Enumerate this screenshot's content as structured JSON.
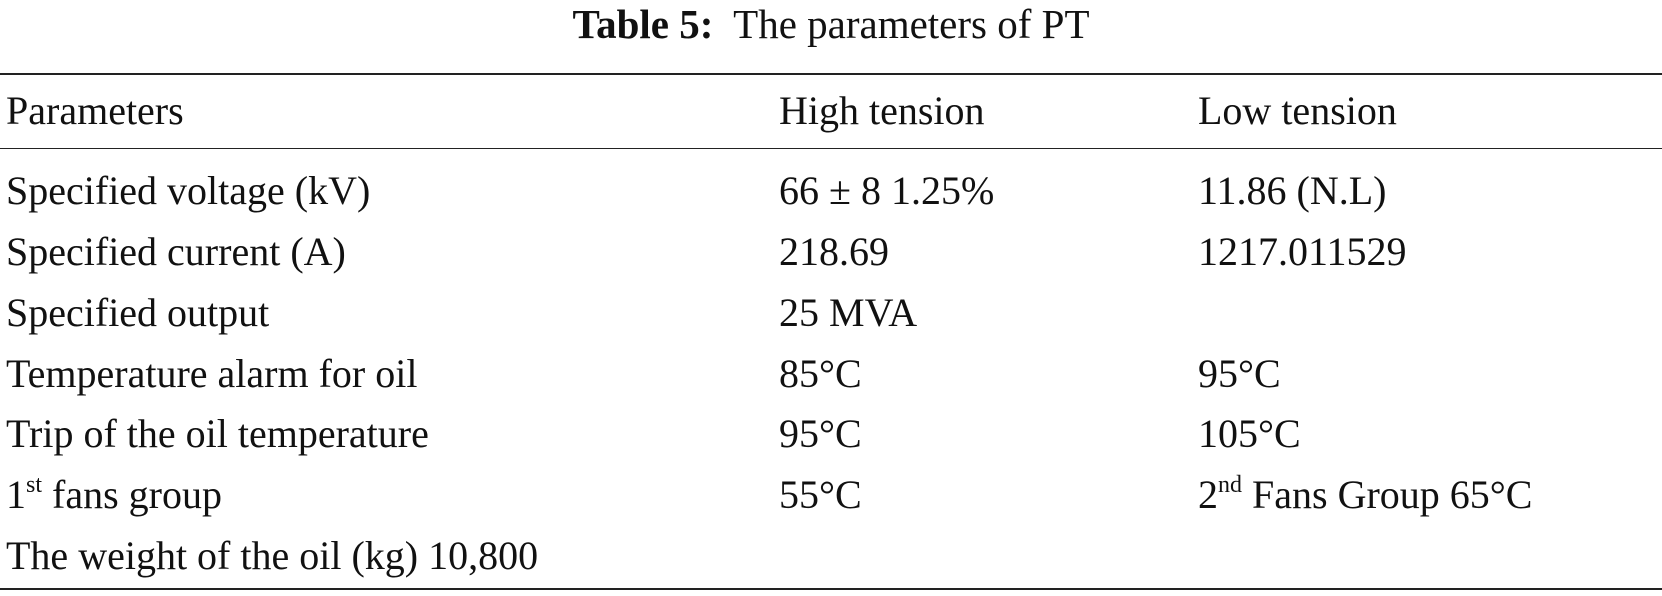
{
  "caption": {
    "label": "Table 5:",
    "title": "The parameters of PT"
  },
  "table": {
    "header": [
      "Parameters",
      "High tension",
      "Low tension"
    ],
    "rows": [
      [
        "Specified voltage (kV)",
        "66 ± 8 1.25%",
        "11.86 (N.L)"
      ],
      [
        "Specified current (A)",
        "218.69",
        "1217.011529"
      ],
      [
        "Specified output",
        "25 MVA"
      ],
      [
        "Temperature alarm for oil",
        "85°C",
        "95°C"
      ],
      [
        "Trip of the oil temperature",
        "95°C",
        "105°C"
      ],
      [
        {
          "base": "1",
          "sup": "st",
          "rest": " fans group"
        },
        "55°C",
        {
          "base": "2",
          "sup": "nd",
          "rest": " Fans Group 65°C"
        }
      ],
      [
        "The weight of the oil (kg) 10,800"
      ]
    ]
  }
}
